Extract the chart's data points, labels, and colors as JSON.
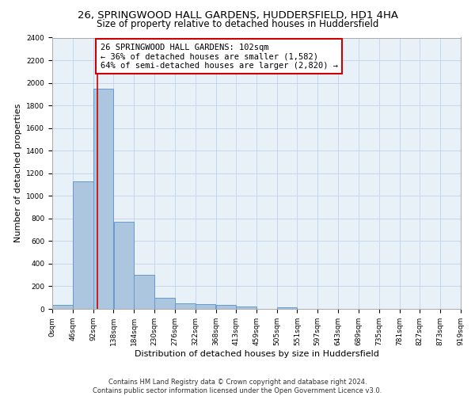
{
  "title_line1": "26, SPRINGWOOD HALL GARDENS, HUDDERSFIELD, HD1 4HA",
  "title_line2": "Size of property relative to detached houses in Huddersfield",
  "xlabel": "Distribution of detached houses by size in Huddersfield",
  "ylabel": "Number of detached properties",
  "bin_edges": [
    0,
    46,
    92,
    138,
    184,
    230,
    276,
    322,
    368,
    413,
    459,
    505,
    551,
    597,
    643,
    689,
    735,
    781,
    827,
    873,
    919
  ],
  "bar_heights": [
    35,
    1130,
    1950,
    770,
    300,
    100,
    50,
    45,
    35,
    20,
    0,
    15,
    0,
    0,
    0,
    0,
    0,
    0,
    0,
    0
  ],
  "bar_color": "#adc6e0",
  "bar_edge_color": "#6699cc",
  "red_line_x": 102,
  "red_line_color": "#cc0000",
  "annotation_text": "26 SPRINGWOOD HALL GARDENS: 102sqm\n← 36% of detached houses are smaller (1,582)\n64% of semi-detached houses are larger (2,820) →",
  "annotation_box_color": "#ffffff",
  "annotation_box_edge": "#cc0000",
  "ylim": [
    0,
    2400
  ],
  "yticks": [
    0,
    200,
    400,
    600,
    800,
    1000,
    1200,
    1400,
    1600,
    1800,
    2000,
    2200,
    2400
  ],
  "grid_color": "#c8d8ec",
  "background_color": "#e8f0f8",
  "tick_labels": [
    "0sqm",
    "46sqm",
    "92sqm",
    "138sqm",
    "184sqm",
    "230sqm",
    "276sqm",
    "322sqm",
    "368sqm",
    "413sqm",
    "459sqm",
    "505sqm",
    "551sqm",
    "597sqm",
    "643sqm",
    "689sqm",
    "735sqm",
    "781sqm",
    "827sqm",
    "873sqm",
    "919sqm"
  ],
  "footer_text": "Contains HM Land Registry data © Crown copyright and database right 2024.\nContains public sector information licensed under the Open Government Licence v3.0.",
  "title_fontsize": 9.5,
  "subtitle_fontsize": 8.5,
  "axis_label_fontsize": 8,
  "tick_fontsize": 6.5,
  "annotation_fontsize": 7.5,
  "footer_fontsize": 6
}
